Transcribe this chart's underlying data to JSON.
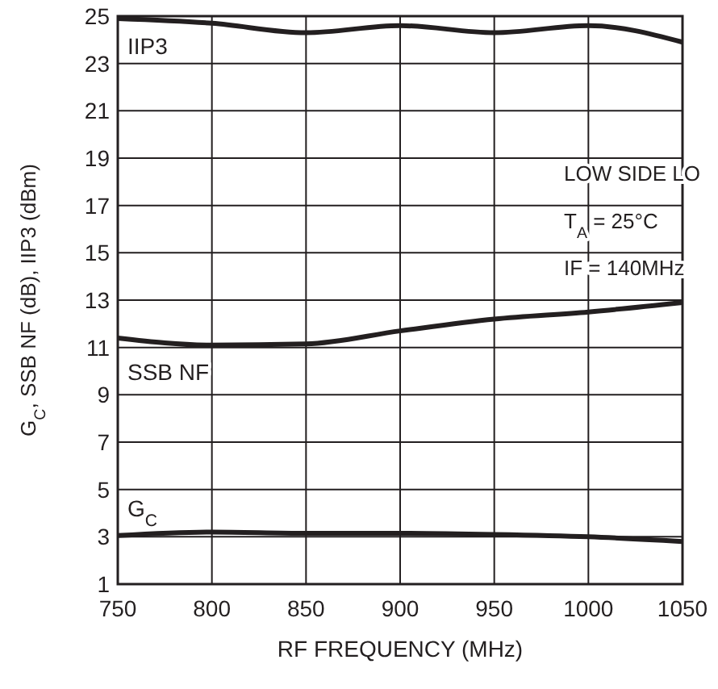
{
  "chart_data": {
    "type": "line",
    "xlabel": "RF FREQUENCY (MHz)",
    "ylabel": "G$_{C}$, SSB NF (dB), IIP3 (dBm)",
    "xlim": [
      750,
      1050
    ],
    "xticks": [
      750,
      800,
      850,
      900,
      950,
      1000,
      1050
    ],
    "ylim": [
      1,
      25
    ],
    "yticks": [
      1,
      3,
      5,
      7,
      9,
      11,
      13,
      15,
      17,
      19,
      21,
      23,
      25
    ],
    "grid": true,
    "marker": "none",
    "line_style": "solid",
    "x": [
      750,
      800,
      850,
      900,
      950,
      1000,
      1050
    ],
    "series": [
      {
        "name": "IIP3",
        "color": "#231f20",
        "values": [
          24.9,
          24.7,
          24.3,
          24.6,
          24.3,
          24.6,
          23.9
        ]
      },
      {
        "name": "SSB NF",
        "color": "#231f20",
        "values": [
          11.4,
          11.1,
          11.15,
          11.7,
          12.2,
          12.5,
          12.9
        ]
      },
      {
        "name": "G$_{C}$",
        "color": "#231f20",
        "values": [
          3.05,
          3.2,
          3.15,
          3.15,
          3.1,
          3.0,
          2.8
        ]
      }
    ],
    "annotations": [
      "LOW SIDE LO",
      "T$_{A}$ = 25°C",
      "IF = 140MHz"
    ]
  }
}
